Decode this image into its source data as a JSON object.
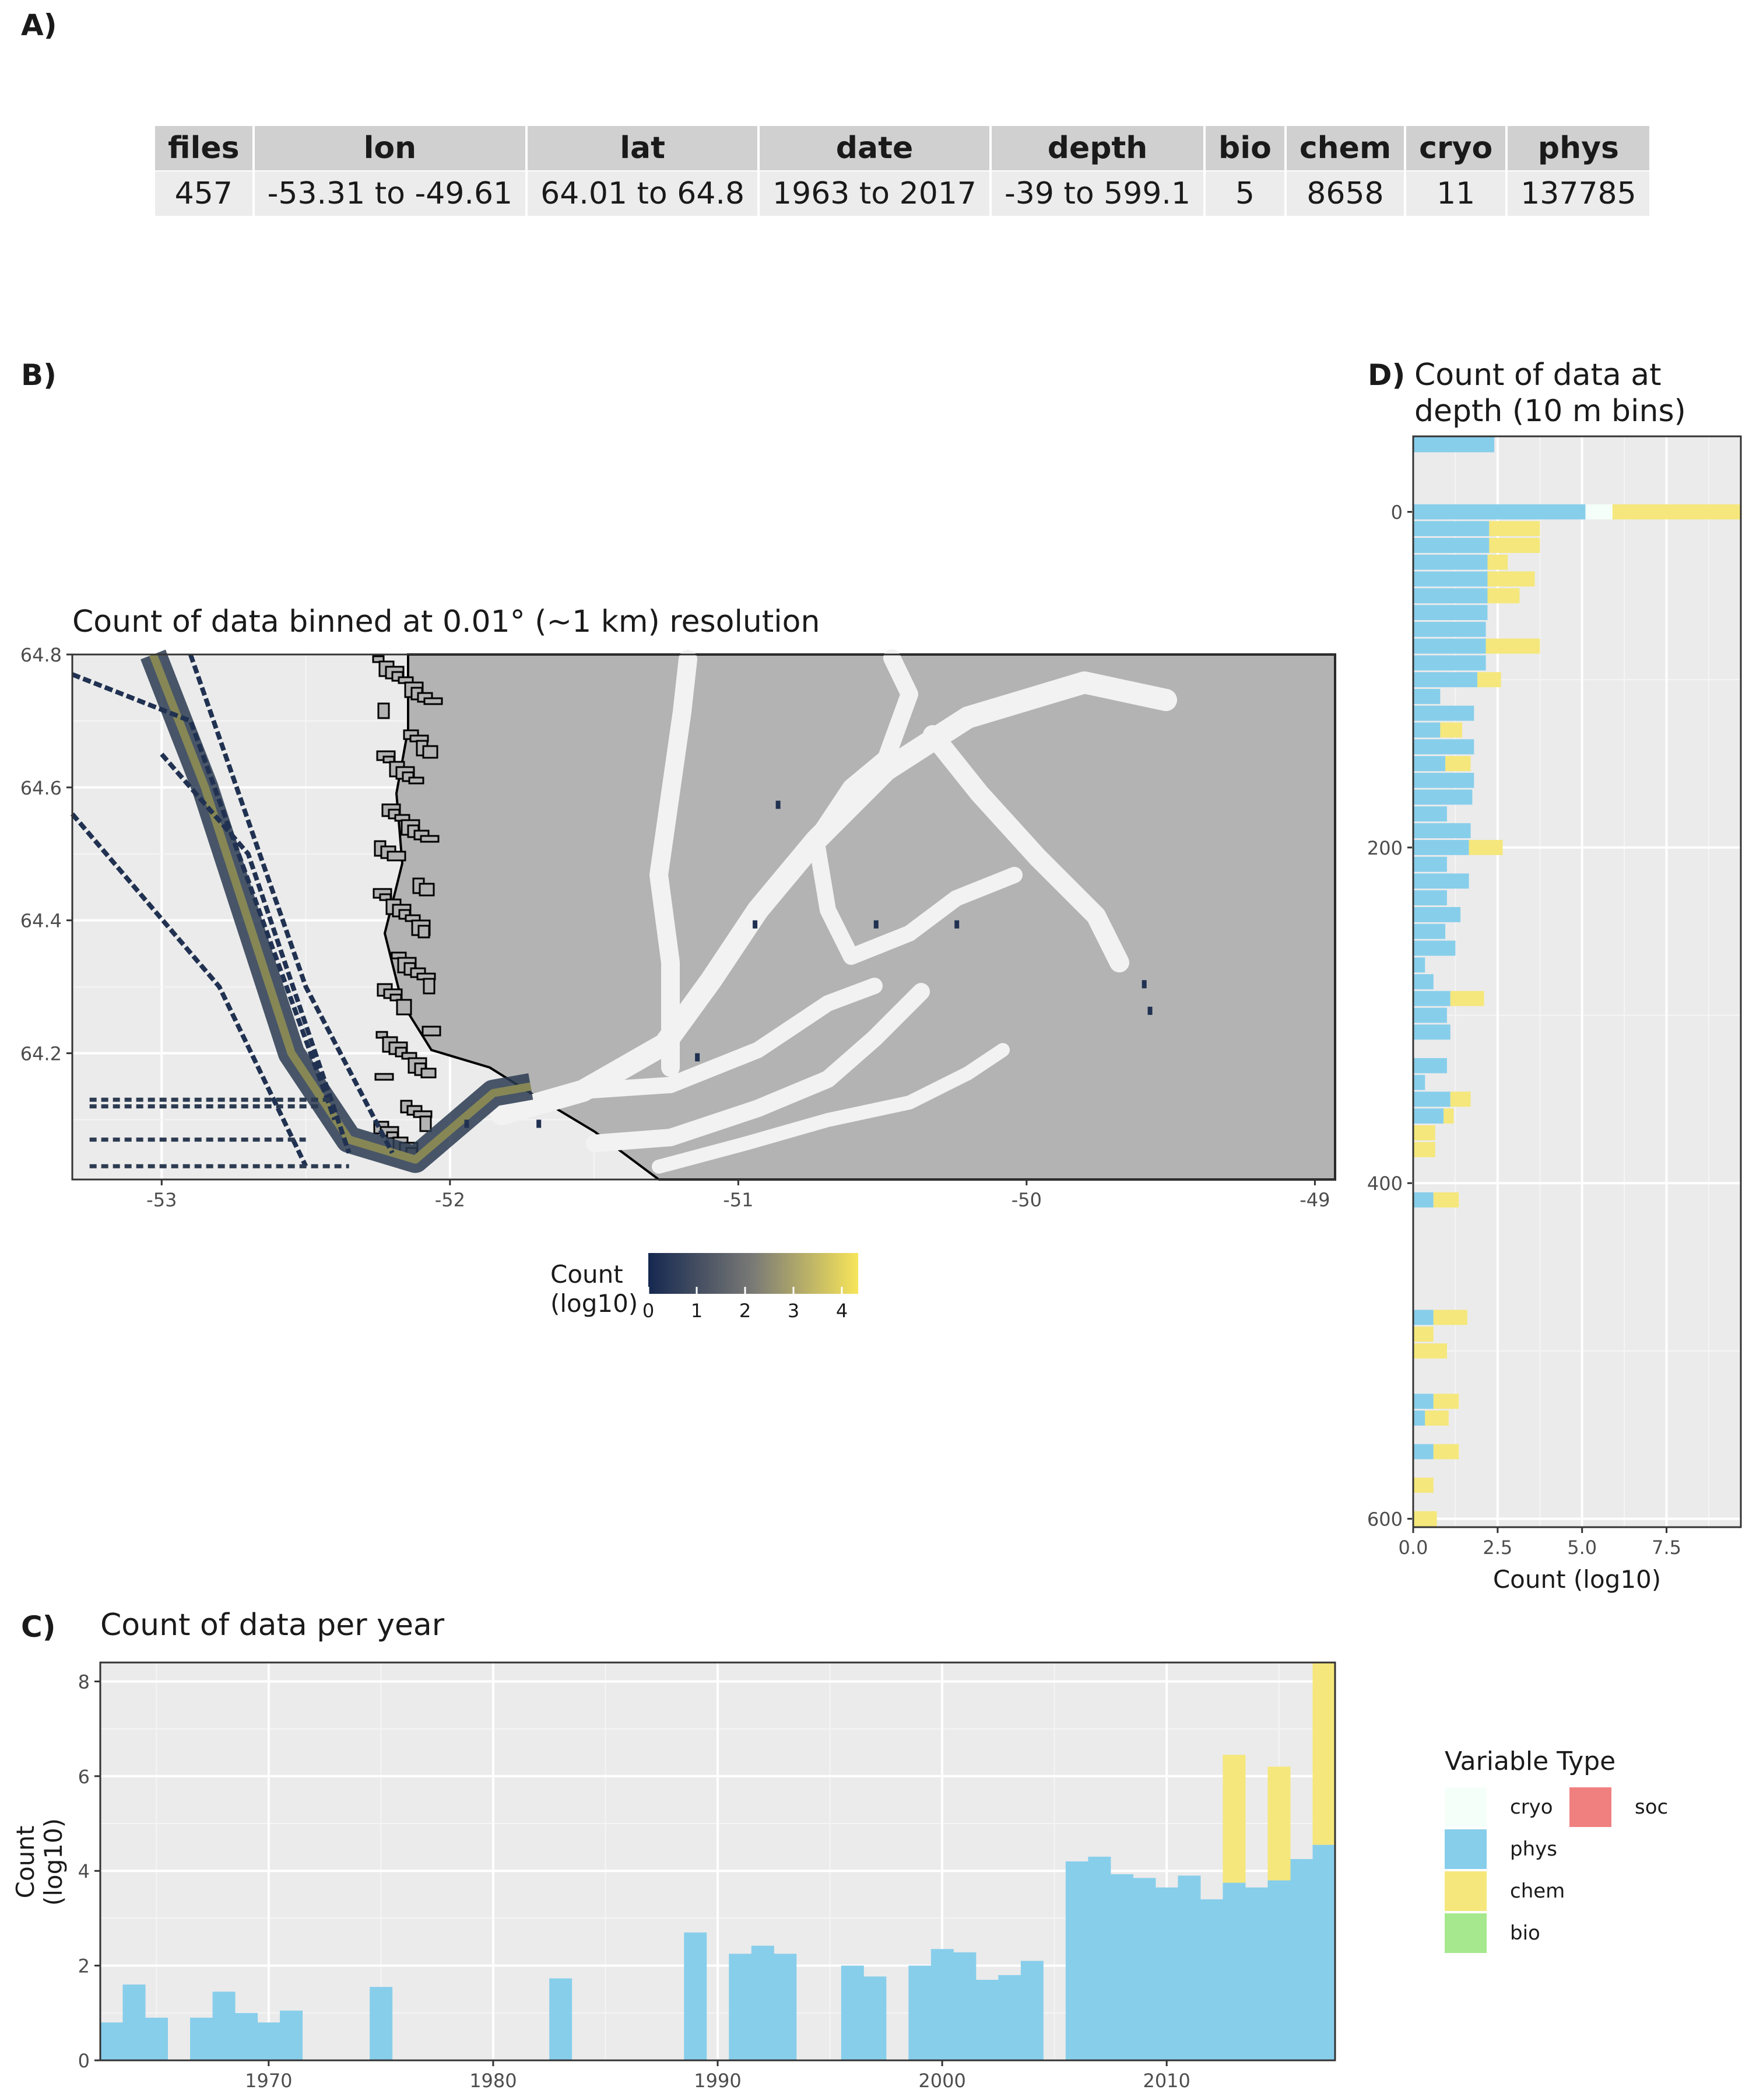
{
  "panel_labels": {
    "a": "A)",
    "b": "B)",
    "c": "C)",
    "d": "D)"
  },
  "summary_table": {
    "headers": [
      "files",
      "lon",
      "lat",
      "date",
      "depth",
      "bio",
      "chem",
      "cryo",
      "phys"
    ],
    "row": [
      "457",
      "-53.31 to -49.61",
      "64.01 to 64.8",
      "1963 to 2017",
      "-39 to 599.1",
      "5",
      "8658",
      "11",
      "137785"
    ]
  },
  "colors": {
    "cryo": "#F5FFFA",
    "phys": "#87CEEB",
    "chem": "#F0E68C",
    "bio": "#98E08A",
    "soc": "#F08080",
    "panel_bg": "#EBEBEB",
    "land": "#B3B3B3",
    "water_white": "#F2F2F2",
    "grid": "#ffffff"
  },
  "map": {
    "title": "Count of data binned at 0.01° (~1 km) resolution",
    "x_ticks": [
      "-53",
      "-52",
      "-51",
      "-50",
      "-49"
    ],
    "y_ticks": [
      "64.8",
      "64.6",
      "64.4",
      "64.2"
    ],
    "xlim": [
      -53.31,
      -48.93
    ],
    "ylim": [
      64.01,
      64.8
    ],
    "colorbar": {
      "title_line1": "Count",
      "title_line2": "(log10)",
      "ticks": [
        "0",
        "1",
        "2",
        "3",
        "4"
      ],
      "low": "#152850",
      "high": "#F7E55A"
    }
  },
  "chart_data": [
    {
      "type": "bar",
      "title": "Count of data per year",
      "xlabel": "",
      "ylabel": "Count\n(log10)",
      "ylim": [
        0,
        8.4
      ],
      "x_ticks": [
        "1970",
        "1980",
        "1990",
        "2000",
        "2010"
      ],
      "y_ticks": [
        "0",
        "2",
        "4",
        "6",
        "8"
      ],
      "stacked": true,
      "series": [
        {
          "name": "phys",
          "points": [
            [
              1963,
              0.8
            ],
            [
              1964,
              1.6
            ],
            [
              1965,
              0.9
            ],
            [
              1967,
              0.9
            ],
            [
              1968,
              1.45
            ],
            [
              1969,
              1.0
            ],
            [
              1970,
              0.8
            ],
            [
              1971,
              1.05
            ],
            [
              1975,
              1.55
            ],
            [
              1983,
              1.73
            ],
            [
              1989,
              2.7
            ],
            [
              1991,
              2.25
            ],
            [
              1992,
              2.42
            ],
            [
              1993,
              2.25
            ],
            [
              1996,
              2.0
            ],
            [
              1997,
              1.77
            ],
            [
              1999,
              2.0
            ],
            [
              2000,
              2.35
            ],
            [
              2001,
              2.28
            ],
            [
              2002,
              1.7
            ],
            [
              2003,
              1.8
            ],
            [
              2004,
              2.1
            ],
            [
              2006,
              4.2
            ],
            [
              2007,
              4.3
            ],
            [
              2008,
              3.93
            ],
            [
              2009,
              3.85
            ],
            [
              2010,
              3.65
            ],
            [
              2011,
              3.9
            ],
            [
              2012,
              3.4
            ],
            [
              2013,
              3.75
            ],
            [
              2014,
              3.65
            ],
            [
              2015,
              3.8
            ],
            [
              2016,
              4.25
            ],
            [
              2017,
              4.55
            ]
          ]
        },
        {
          "name": "chem",
          "points": [
            [
              2013,
              2.7
            ],
            [
              2015,
              2.4
            ],
            [
              2017,
              3.85
            ]
          ]
        }
      ]
    },
    {
      "type": "bar",
      "orientation": "horizontal",
      "title": "Count of data at depth (10 m bins)",
      "xlabel": "Count (log10)",
      "ylabel": "",
      "xlim": [
        0,
        9.7
      ],
      "x_ticks": [
        "0.0",
        "2.5",
        "5.0",
        "7.5"
      ],
      "y_ticks": [
        "0",
        "200",
        "400",
        "600"
      ],
      "stacked": true,
      "series": [
        {
          "name": "phys",
          "points": [
            [
              -40,
              2.4
            ],
            [
              0,
              5.1
            ],
            [
              10,
              2.25
            ],
            [
              20,
              2.25
            ],
            [
              30,
              2.2
            ],
            [
              40,
              2.2
            ],
            [
              50,
              2.2
            ],
            [
              60,
              2.2
            ],
            [
              70,
              2.15
            ],
            [
              80,
              2.15
            ],
            [
              90,
              2.15
            ],
            [
              100,
              1.9
            ],
            [
              110,
              0.8
            ],
            [
              120,
              1.8
            ],
            [
              130,
              0.8
            ],
            [
              140,
              1.8
            ],
            [
              150,
              0.95
            ],
            [
              160,
              1.8
            ],
            [
              170,
              1.75
            ],
            [
              180,
              1.0
            ],
            [
              190,
              1.7
            ],
            [
              200,
              1.65
            ],
            [
              210,
              1.0
            ],
            [
              220,
              1.65
            ],
            [
              230,
              1.0
            ],
            [
              240,
              1.4
            ],
            [
              250,
              0.95
            ],
            [
              260,
              1.25
            ],
            [
              270,
              0.35
            ],
            [
              280,
              0.6
            ],
            [
              290,
              1.1
            ],
            [
              300,
              1.0
            ],
            [
              310,
              1.1
            ],
            [
              330,
              1.0
            ],
            [
              340,
              0.35
            ],
            [
              350,
              1.1
            ],
            [
              360,
              0.9
            ],
            [
              410,
              0.6
            ],
            [
              480,
              0.6
            ],
            [
              530,
              0.6
            ],
            [
              540,
              0.35
            ],
            [
              560,
              0.6
            ]
          ]
        },
        {
          "name": "cryo",
          "points": [
            [
              0,
              0.8
            ]
          ]
        },
        {
          "name": "chem",
          "points": [
            [
              0,
              3.8
            ],
            [
              10,
              1.5
            ],
            [
              20,
              1.5
            ],
            [
              30,
              0.6
            ],
            [
              40,
              1.4
            ],
            [
              50,
              0.95
            ],
            [
              80,
              1.6
            ],
            [
              100,
              0.7
            ],
            [
              130,
              0.65
            ],
            [
              150,
              0.75
            ],
            [
              200,
              1.0
            ],
            [
              290,
              1.0
            ],
            [
              350,
              0.6
            ],
            [
              360,
              0.3
            ],
            [
              370,
              0.65
            ],
            [
              380,
              0.65
            ],
            [
              410,
              0.75
            ],
            [
              480,
              1.0
            ],
            [
              490,
              0.6
            ],
            [
              500,
              1.0
            ],
            [
              530,
              0.75
            ],
            [
              540,
              0.7
            ],
            [
              560,
              0.75
            ],
            [
              580,
              0.6
            ],
            [
              600,
              0.7
            ]
          ]
        }
      ]
    }
  ],
  "legend": {
    "title": "Variable Type",
    "items": [
      {
        "name": "cryo",
        "label": "cryo"
      },
      {
        "name": "phys",
        "label": "phys"
      },
      {
        "name": "chem",
        "label": "chem"
      },
      {
        "name": "bio",
        "label": "bio"
      },
      {
        "name": "soc",
        "label": "soc"
      }
    ]
  }
}
